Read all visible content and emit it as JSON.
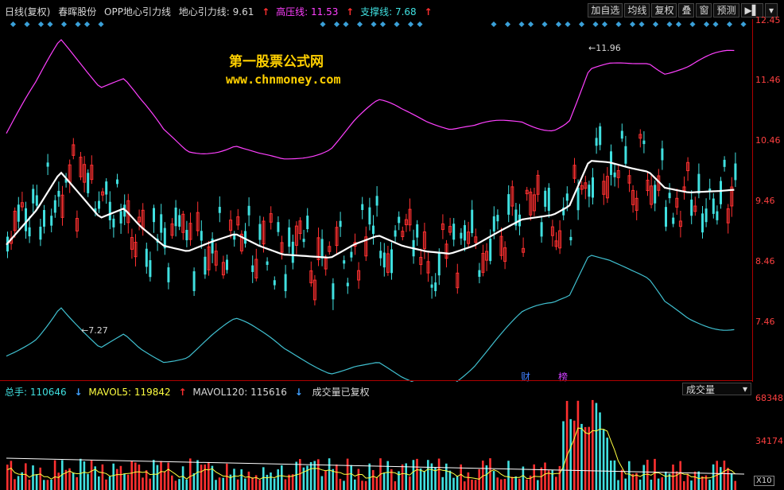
{
  "header": {
    "period": "日线(复权)",
    "stock_name": "春晖股份",
    "indicator": "OPP地心引力线",
    "center_label": "地心引力线:",
    "center_value": "9.61",
    "high_label": "高压线:",
    "high_value": "11.53",
    "support_label": "支撑线:",
    "support_value": "7.68"
  },
  "toolbar": {
    "add_watch": "加自选",
    "ma_line": "均线",
    "restore_rights": "复权",
    "overlay": "叠",
    "window": "窗",
    "forecast": "预测"
  },
  "price_axis": [
    "12.45",
    "11.46",
    "10.46",
    "9.46",
    "8.46",
    "7.46"
  ],
  "watermark": {
    "line1": "第一股票公式网",
    "line2": "www.chnmoney.com"
  },
  "annotations": {
    "high_mark": "11.96",
    "low_mark": "7.27",
    "event1": "财",
    "event2": "榜"
  },
  "volume_header": {
    "total_label": "总手:",
    "total_value": "110646",
    "mavol5_label": "MAVOL5:",
    "mavol5_value": "119842",
    "mavol120_label": "MAVOL120:",
    "mavol120_value": "115616",
    "note": "成交量已复权"
  },
  "volume_select": "成交量",
  "volume_axis": [
    "68348",
    "34174"
  ],
  "volume_scale": "X10",
  "colors": {
    "up": "#ff3030",
    "down": "#40e0e0",
    "high_line": "#ff40ff",
    "support_line": "#40c0d0",
    "center_line": "#ffffff"
  }
}
